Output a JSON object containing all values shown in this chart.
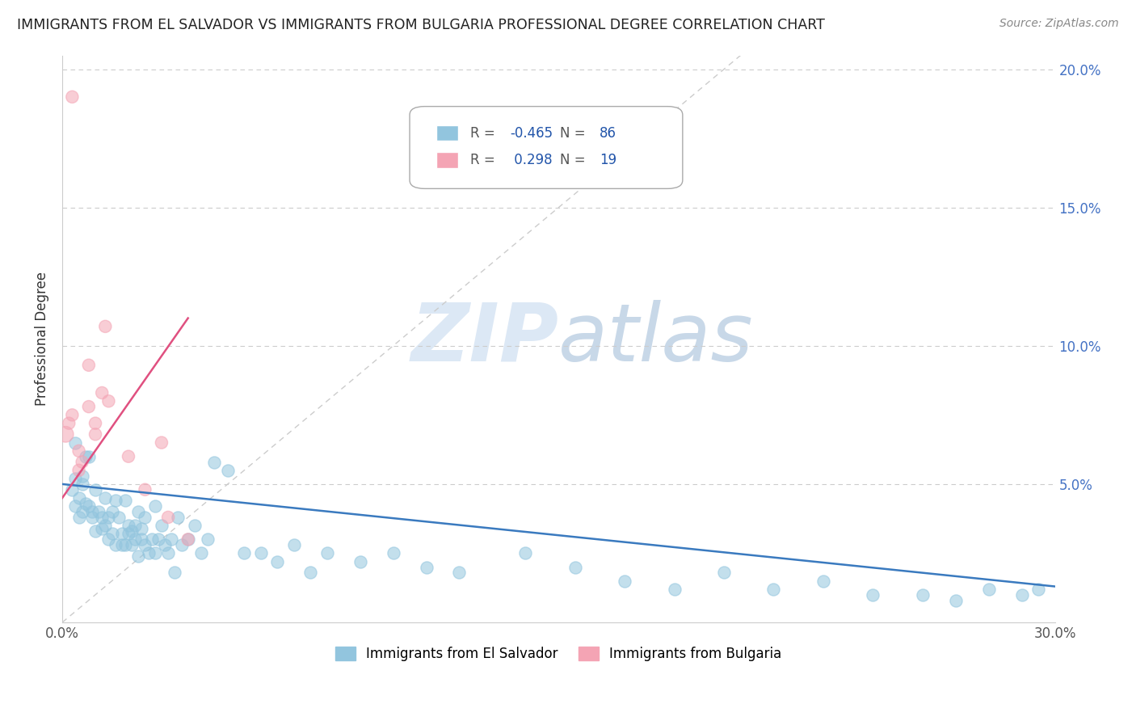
{
  "title": "IMMIGRANTS FROM EL SALVADOR VS IMMIGRANTS FROM BULGARIA PROFESSIONAL DEGREE CORRELATION CHART",
  "source": "Source: ZipAtlas.com",
  "ylabel": "Professional Degree",
  "xlim": [
    0.0,
    0.3
  ],
  "ylim": [
    0.0,
    0.205
  ],
  "blue_R": -0.465,
  "blue_N": 86,
  "pink_R": 0.298,
  "pink_N": 19,
  "blue_color": "#92c5de",
  "pink_color": "#f4a4b4",
  "blue_line_color": "#3a7abf",
  "pink_line_color": "#e05080",
  "diag_line_color": "#cccccc",
  "watermark_color": "#dce8f5",
  "blue_scatter_x": [
    0.003,
    0.004,
    0.004,
    0.005,
    0.005,
    0.006,
    0.006,
    0.007,
    0.007,
    0.008,
    0.009,
    0.009,
    0.01,
    0.01,
    0.011,
    0.012,
    0.012,
    0.013,
    0.013,
    0.014,
    0.014,
    0.015,
    0.015,
    0.016,
    0.016,
    0.017,
    0.018,
    0.018,
    0.019,
    0.019,
    0.02,
    0.02,
    0.021,
    0.021,
    0.022,
    0.022,
    0.023,
    0.023,
    0.024,
    0.024,
    0.025,
    0.025,
    0.026,
    0.027,
    0.028,
    0.028,
    0.029,
    0.03,
    0.031,
    0.032,
    0.033,
    0.034,
    0.035,
    0.036,
    0.038,
    0.04,
    0.042,
    0.044,
    0.046,
    0.05,
    0.055,
    0.06,
    0.065,
    0.07,
    0.075,
    0.08,
    0.09,
    0.1,
    0.11,
    0.12,
    0.14,
    0.155,
    0.17,
    0.185,
    0.2,
    0.215,
    0.23,
    0.245,
    0.26,
    0.27,
    0.28,
    0.29,
    0.295,
    0.004,
    0.006,
    0.008
  ],
  "blue_scatter_y": [
    0.048,
    0.052,
    0.042,
    0.045,
    0.038,
    0.053,
    0.04,
    0.043,
    0.06,
    0.042,
    0.04,
    0.038,
    0.048,
    0.033,
    0.04,
    0.038,
    0.034,
    0.035,
    0.045,
    0.03,
    0.038,
    0.04,
    0.032,
    0.028,
    0.044,
    0.038,
    0.032,
    0.028,
    0.044,
    0.028,
    0.032,
    0.035,
    0.028,
    0.033,
    0.035,
    0.03,
    0.024,
    0.04,
    0.03,
    0.034,
    0.028,
    0.038,
    0.025,
    0.03,
    0.025,
    0.042,
    0.03,
    0.035,
    0.028,
    0.025,
    0.03,
    0.018,
    0.038,
    0.028,
    0.03,
    0.035,
    0.025,
    0.03,
    0.058,
    0.055,
    0.025,
    0.025,
    0.022,
    0.028,
    0.018,
    0.025,
    0.022,
    0.025,
    0.02,
    0.018,
    0.025,
    0.02,
    0.015,
    0.012,
    0.018,
    0.012,
    0.015,
    0.01,
    0.01,
    0.008,
    0.012,
    0.01,
    0.012,
    0.065,
    0.05,
    0.06
  ],
  "pink_scatter_x": [
    0.001,
    0.002,
    0.003,
    0.003,
    0.005,
    0.005,
    0.006,
    0.008,
    0.008,
    0.01,
    0.01,
    0.012,
    0.013,
    0.014,
    0.02,
    0.025,
    0.03,
    0.032,
    0.038
  ],
  "pink_scatter_y": [
    0.068,
    0.072,
    0.075,
    0.19,
    0.062,
    0.055,
    0.058,
    0.093,
    0.078,
    0.068,
    0.072,
    0.083,
    0.107,
    0.08,
    0.06,
    0.048,
    0.065,
    0.038,
    0.03
  ],
  "blue_line_x": [
    0.0,
    0.3
  ],
  "blue_line_y": [
    0.05,
    0.013
  ],
  "pink_line_x": [
    0.0,
    0.038
  ],
  "pink_line_y": [
    0.045,
    0.11
  ],
  "ytick_positions": [
    0.05,
    0.1,
    0.15,
    0.2
  ],
  "ytick_labels": [
    "5.0%",
    "10.0%",
    "15.0%",
    "20.0%"
  ],
  "xtick_positions": [
    0.0,
    0.05,
    0.1,
    0.15,
    0.2,
    0.25,
    0.3
  ],
  "xtick_labels": [
    "0.0%",
    "",
    "",
    "",
    "",
    "",
    "30.0%"
  ]
}
